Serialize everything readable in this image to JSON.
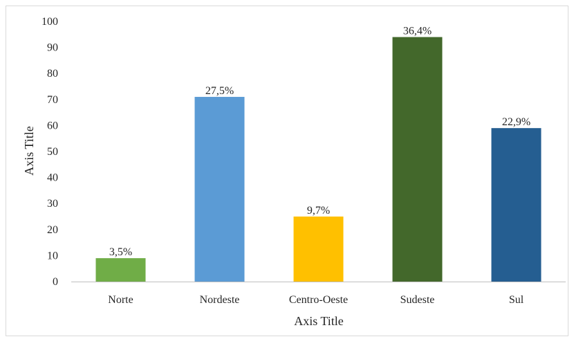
{
  "chart_data": {
    "type": "bar",
    "categories": [
      "Norte",
      "Nordeste",
      "Centro-Oeste",
      "Sudeste",
      "Sul"
    ],
    "values": [
      9,
      71,
      25,
      94,
      59
    ],
    "data_labels": [
      "3,5%",
      "27,5%",
      "9,7%",
      "36,4%",
      "22,9%"
    ],
    "colors": [
      "#70ad47",
      "#5b9bd5",
      "#ffc000",
      "#43682b",
      "#255e91"
    ],
    "xlabel": "Axis Title",
    "ylabel": "Axis Title",
    "ylim": [
      0,
      100
    ],
    "yticks": [
      0,
      10,
      20,
      30,
      40,
      50,
      60,
      70,
      80,
      90,
      100
    ],
    "grid": false,
    "legend": "none"
  }
}
